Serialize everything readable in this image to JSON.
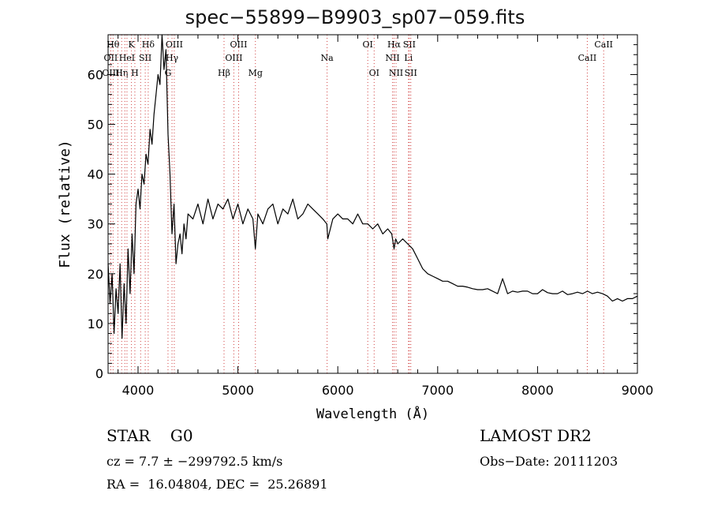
{
  "chart_data": {
    "type": "line",
    "title": "spec−55899−B9903_sp07−059.fits",
    "xlabel": "Wavelength (Å)",
    "ylabel": "Flux (relative)",
    "xlim": [
      3700,
      9000
    ],
    "ylim": [
      0,
      68
    ],
    "xticks": [
      4000,
      5000,
      6000,
      7000,
      8000,
      9000
    ],
    "yticks": [
      0,
      10,
      20,
      30,
      40,
      50,
      60
    ],
    "grid": false,
    "series": [
      {
        "x": [
          3700,
          3720,
          3740,
          3760,
          3780,
          3800,
          3820,
          3840,
          3860,
          3880,
          3900,
          3920,
          3940,
          3960,
          3980,
          4000,
          4020,
          4040,
          4060,
          4080,
          4100,
          4120,
          4140,
          4160,
          4180,
          4200,
          4220,
          4240,
          4260,
          4280,
          4300,
          4320,
          4340,
          4360,
          4380,
          4400,
          4420,
          4440,
          4460,
          4480,
          4500,
          4550,
          4600,
          4650,
          4700,
          4750,
          4800,
          4850,
          4900,
          4950,
          5000,
          5050,
          5100,
          5150,
          5175,
          5200,
          5250,
          5300,
          5350,
          5400,
          5450,
          5500,
          5550,
          5600,
          5650,
          5700,
          5750,
          5800,
          5850,
          5890,
          5900,
          5950,
          6000,
          6050,
          6100,
          6150,
          6200,
          6250,
          6300,
          6350,
          6400,
          6450,
          6500,
          6540,
          6563,
          6580,
          6600,
          6650,
          6700,
          6750,
          6800,
          6850,
          6900,
          6950,
          7000,
          7050,
          7100,
          7150,
          7200,
          7250,
          7300,
          7350,
          7400,
          7450,
          7500,
          7550,
          7600,
          7650,
          7700,
          7750,
          7800,
          7850,
          7900,
          7950,
          8000,
          8050,
          8100,
          8150,
          8200,
          8250,
          8300,
          8350,
          8400,
          8450,
          8500,
          8550,
          8600,
          8650,
          8700,
          8750,
          8800,
          8850,
          8900,
          8950,
          9000
        ],
        "values": [
          22,
          14,
          20,
          8,
          17,
          12,
          22,
          7,
          18,
          10,
          25,
          16,
          28,
          20,
          34,
          37,
          33,
          40,
          38,
          44,
          42,
          49,
          46,
          52,
          56,
          60,
          58,
          68,
          61,
          65,
          48,
          40,
          28,
          34,
          22,
          26,
          28,
          24,
          30,
          27,
          32,
          31,
          34,
          30,
          35,
          31,
          34,
          33,
          35,
          31,
          34,
          30,
          33,
          31,
          25,
          32,
          30,
          33,
          34,
          30,
          33,
          32,
          35,
          31,
          32,
          34,
          33,
          32,
          31,
          30,
          27,
          31,
          32,
          31,
          31,
          30,
          32,
          30,
          30,
          29,
          30,
          28,
          29,
          28,
          25,
          27,
          26,
          27,
          26,
          25,
          23,
          21,
          20,
          19.5,
          19,
          18.5,
          18.5,
          18,
          17.5,
          17.5,
          17.3,
          17,
          16.8,
          16.8,
          17,
          16.5,
          16,
          19,
          16,
          16.5,
          16.3,
          16.5,
          16.5,
          16,
          16,
          16.8,
          16.2,
          16,
          16,
          16.5,
          15.8,
          16,
          16.3,
          16,
          16.5,
          16,
          16.3,
          16,
          15.5,
          14.5,
          15,
          14.5,
          15,
          15,
          15.5
        ]
      }
    ],
    "lines": [
      {
        "x": 3750,
        "label": "Hθ",
        "row": 0
      },
      {
        "x": 3727,
        "label": "OII",
        "row": 1
      },
      {
        "x": 3727,
        "label": "OIII",
        "row": 2
      },
      {
        "x": 3798,
        "label": "",
        "row": -1
      },
      {
        "x": 3836,
        "label": "Hη",
        "row": 2
      },
      {
        "x": 3868,
        "label": "",
        "row": -1
      },
      {
        "x": 3889,
        "label": "HeI",
        "row": 1
      },
      {
        "x": 3934,
        "label": "K",
        "row": 0
      },
      {
        "x": 3968,
        "label": "H",
        "row": 2
      },
      {
        "x": 4026,
        "label": "",
        "row": -1
      },
      {
        "x": 4072,
        "label": "SII",
        "row": 1
      },
      {
        "x": 4102,
        "label": "Hδ",
        "row": 0
      },
      {
        "x": 4300,
        "label": "G",
        "row": 2
      },
      {
        "x": 4340,
        "label": "Hγ",
        "row": 1
      },
      {
        "x": 4363,
        "label": "OIII",
        "row": 0
      },
      {
        "x": 4861,
        "label": "Hβ",
        "row": 2
      },
      {
        "x": 4959,
        "label": "OIII",
        "row": 1
      },
      {
        "x": 5007,
        "label": "OIII",
        "row": 0
      },
      {
        "x": 5175,
        "label": "Mg",
        "row": 2
      },
      {
        "x": 5893,
        "label": "Na",
        "row": 1
      },
      {
        "x": 6300,
        "label": "OI",
        "row": 0
      },
      {
        "x": 6364,
        "label": "OI",
        "row": 2
      },
      {
        "x": 6548,
        "label": "NII",
        "row": 1
      },
      {
        "x": 6563,
        "label": "Hα",
        "row": 0
      },
      {
        "x": 6583,
        "label": "NII",
        "row": 2
      },
      {
        "x": 6708,
        "label": "Li",
        "row": 1
      },
      {
        "x": 6716,
        "label": "SII",
        "row": 0
      },
      {
        "x": 6731,
        "label": "SII",
        "row": 2
      },
      {
        "x": 8498,
        "label": "CaII",
        "row": 1
      },
      {
        "x": 8662,
        "label": "CaII",
        "row": 0
      }
    ]
  },
  "info": {
    "object_type": "STAR    G0",
    "survey": "LAMOST DR2",
    "cz": "cz = 7.7 ± −299792.5 km/s",
    "obs_date": "Obs−Date: 20111203",
    "coords": "RA =  16.04804, DEC =  25.26891"
  },
  "colors": {
    "line_marker": "#d04040",
    "spectrum": "#000000"
  }
}
